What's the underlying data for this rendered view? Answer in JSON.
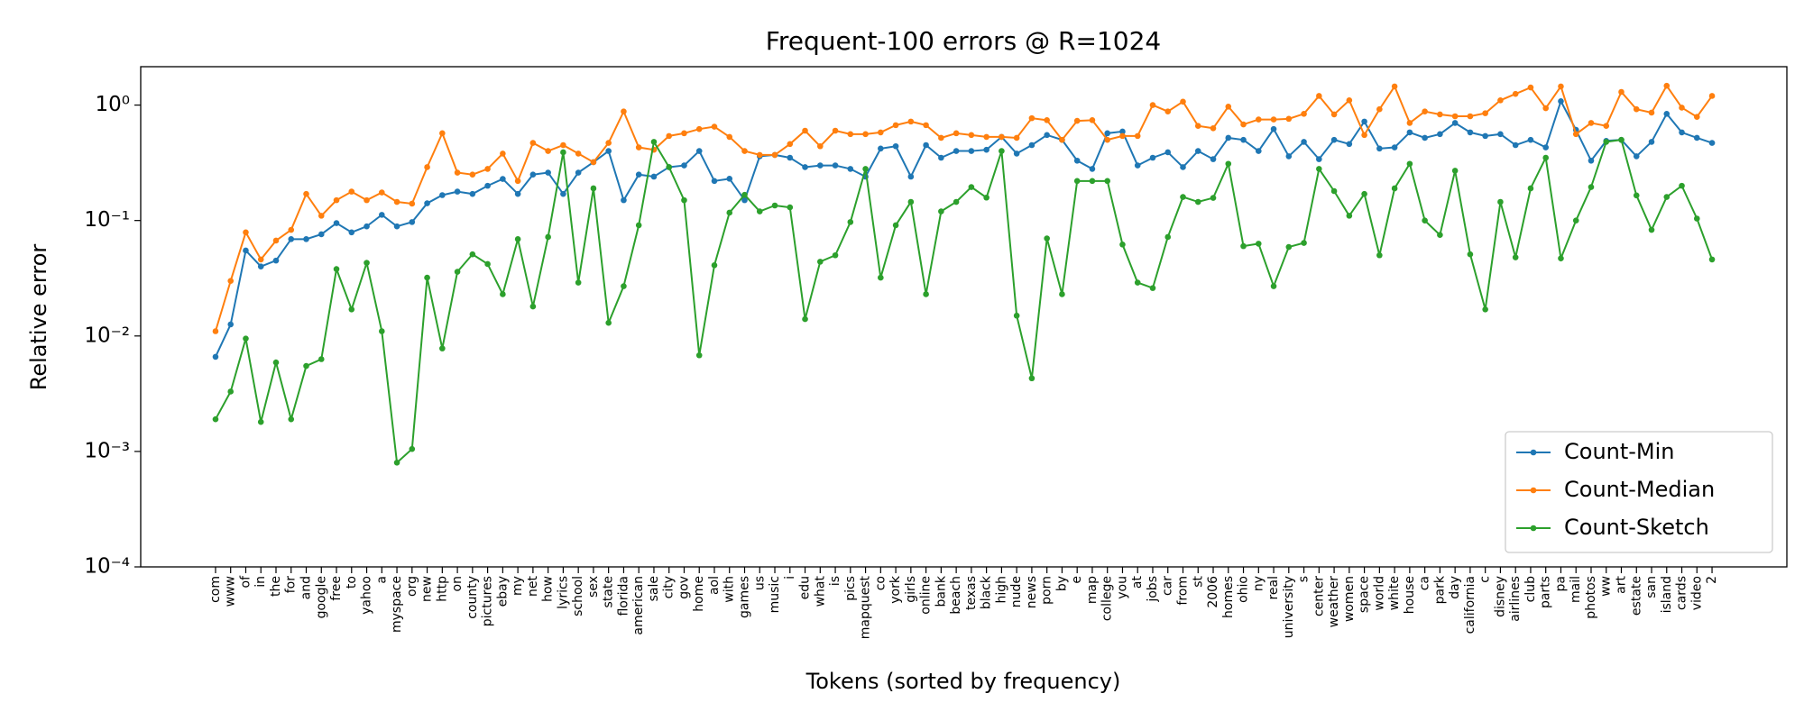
{
  "chart_data": {
    "type": "line",
    "title": "Frequent-100 errors @ R=1024",
    "xlabel": "Tokens (sorted by frequency)",
    "ylabel": "Relative error",
    "yscale": "log",
    "legend": "lower right",
    "categories": [
      "com",
      "www",
      "of",
      "in",
      "the",
      "for",
      "and",
      "google",
      "free",
      "to",
      "yahoo",
      "a",
      "myspace",
      "org",
      "new",
      "http",
      "on",
      "county",
      "pictures",
      "ebay",
      "my",
      "net",
      "how",
      "lyrics",
      "school",
      "sex",
      "state",
      "florida",
      "american",
      "sale",
      "city",
      "gov",
      "home",
      "aol",
      "with",
      "games",
      "us",
      "music",
      "i",
      "edu",
      "what",
      "is",
      "pics",
      "mapquest",
      "co",
      "york",
      "girls",
      "online",
      "bank",
      "beach",
      "texas",
      "black",
      "high",
      "nude",
      "news",
      "porn",
      "by",
      "e",
      "map",
      "college",
      "you",
      "at",
      "jobs",
      "car",
      "from",
      "st",
      "2006",
      "homes",
      "ohio",
      "ny",
      "real",
      "university",
      "s",
      "center",
      "weather",
      "women",
      "space",
      "world",
      "white",
      "house",
      "ca",
      "park",
      "day",
      "california",
      "c",
      "disney",
      "airlines",
      "club",
      "parts",
      "pa",
      "mail",
      "photos",
      "ww",
      "art",
      "estate",
      "san",
      "island",
      "cards",
      "video",
      "2"
    ],
    "series": [
      {
        "name": "Count-Min",
        "color": "#1f77b4",
        "values": [
          0.0066,
          0.0126,
          0.055,
          0.04,
          0.045,
          0.069,
          0.069,
          0.076,
          0.095,
          0.079,
          0.089,
          0.112,
          0.089,
          0.097,
          0.141,
          0.166,
          0.178,
          0.17,
          0.2,
          0.229,
          0.17,
          0.25,
          0.26,
          0.17,
          0.26,
          0.32,
          0.4,
          0.15,
          0.25,
          0.24,
          0.29,
          0.3,
          0.4,
          0.22,
          0.23,
          0.15,
          0.36,
          0.37,
          0.35,
          0.29,
          0.3,
          0.3,
          0.28,
          0.24,
          0.42,
          0.44,
          0.24,
          0.45,
          0.35,
          0.4,
          0.4,
          0.41,
          0.53,
          0.38,
          0.45,
          0.55,
          0.5,
          0.33,
          0.28,
          0.57,
          0.59,
          0.3,
          0.35,
          0.39,
          0.29,
          0.4,
          0.34,
          0.52,
          0.5,
          0.4,
          0.62,
          0.36,
          0.48,
          0.34,
          0.5,
          0.46,
          0.72,
          0.42,
          0.43,
          0.58,
          0.52,
          0.56,
          0.7,
          0.58,
          0.54,
          0.56,
          0.45,
          0.5,
          0.43,
          1.08,
          0.61,
          0.33,
          0.49,
          0.5,
          0.36,
          0.48,
          0.84,
          0.58,
          0.52,
          0.47
        ]
      },
      {
        "name": "Count-Median",
        "color": "#ff7f0e",
        "values": [
          0.011,
          0.03,
          0.079,
          0.046,
          0.067,
          0.083,
          0.17,
          0.11,
          0.15,
          0.178,
          0.15,
          0.175,
          0.145,
          0.14,
          0.29,
          0.57,
          0.26,
          0.25,
          0.28,
          0.38,
          0.22,
          0.47,
          0.4,
          0.45,
          0.38,
          0.32,
          0.47,
          0.88,
          0.43,
          0.41,
          0.54,
          0.57,
          0.62,
          0.65,
          0.53,
          0.4,
          0.37,
          0.37,
          0.46,
          0.6,
          0.44,
          0.6,
          0.56,
          0.56,
          0.58,
          0.67,
          0.72,
          0.67,
          0.52,
          0.57,
          0.55,
          0.53,
          0.53,
          0.52,
          0.77,
          0.74,
          0.5,
          0.73,
          0.74,
          0.5,
          0.54,
          0.54,
          1.0,
          0.88,
          1.07,
          0.66,
          0.63,
          0.97,
          0.68,
          0.75,
          0.75,
          0.76,
          0.84,
          1.2,
          0.83,
          1.1,
          0.55,
          0.92,
          1.45,
          0.7,
          0.88,
          0.83,
          0.8,
          0.8,
          0.85,
          1.1,
          1.25,
          1.42,
          0.94,
          1.45,
          0.56,
          0.7,
          0.66,
          1.3,
          0.92,
          0.86,
          1.47,
          0.95,
          0.79,
          1.2
        ]
      },
      {
        "name": "Count-Sketch",
        "color": "#2ca02c",
        "values": [
          0.0019,
          0.0033,
          0.0095,
          0.0018,
          0.0059,
          0.0019,
          0.0055,
          0.0063,
          0.038,
          0.017,
          0.043,
          0.011,
          0.0008,
          0.00105,
          0.032,
          0.0078,
          0.036,
          0.051,
          0.042,
          0.023,
          0.069,
          0.018,
          0.072,
          0.39,
          0.029,
          0.19,
          0.013,
          0.027,
          0.091,
          0.48,
          0.29,
          0.15,
          0.0068,
          0.041,
          0.117,
          0.167,
          0.12,
          0.135,
          0.13,
          0.014,
          0.044,
          0.05,
          0.097,
          0.28,
          0.032,
          0.091,
          0.145,
          0.023,
          0.12,
          0.145,
          0.195,
          0.158,
          0.4,
          0.015,
          0.0043,
          0.07,
          0.023,
          0.22,
          0.22,
          0.22,
          0.062,
          0.029,
          0.026,
          0.072,
          0.16,
          0.145,
          0.157,
          0.31,
          0.06,
          0.063,
          0.027,
          0.059,
          0.064,
          0.28,
          0.18,
          0.11,
          0.17,
          0.05,
          0.19,
          0.31,
          0.1,
          0.075,
          0.27,
          0.051,
          0.017,
          0.145,
          0.048,
          0.19,
          0.35,
          0.047,
          0.1,
          0.195,
          0.48,
          0.5,
          0.165,
          0.083,
          0.16,
          0.2,
          0.104,
          0.046
        ]
      }
    ],
    "ylim": [
      0.0001,
      2.15
    ],
    "yticks": [
      {
        "value": 0.0001,
        "label": "10⁻⁴"
      },
      {
        "value": 0.001,
        "label": "10⁻³"
      },
      {
        "value": 0.01,
        "label": "10⁻²"
      },
      {
        "value": 0.1,
        "label": "10⁻¹"
      },
      {
        "value": 1,
        "label": "10⁰"
      }
    ]
  }
}
